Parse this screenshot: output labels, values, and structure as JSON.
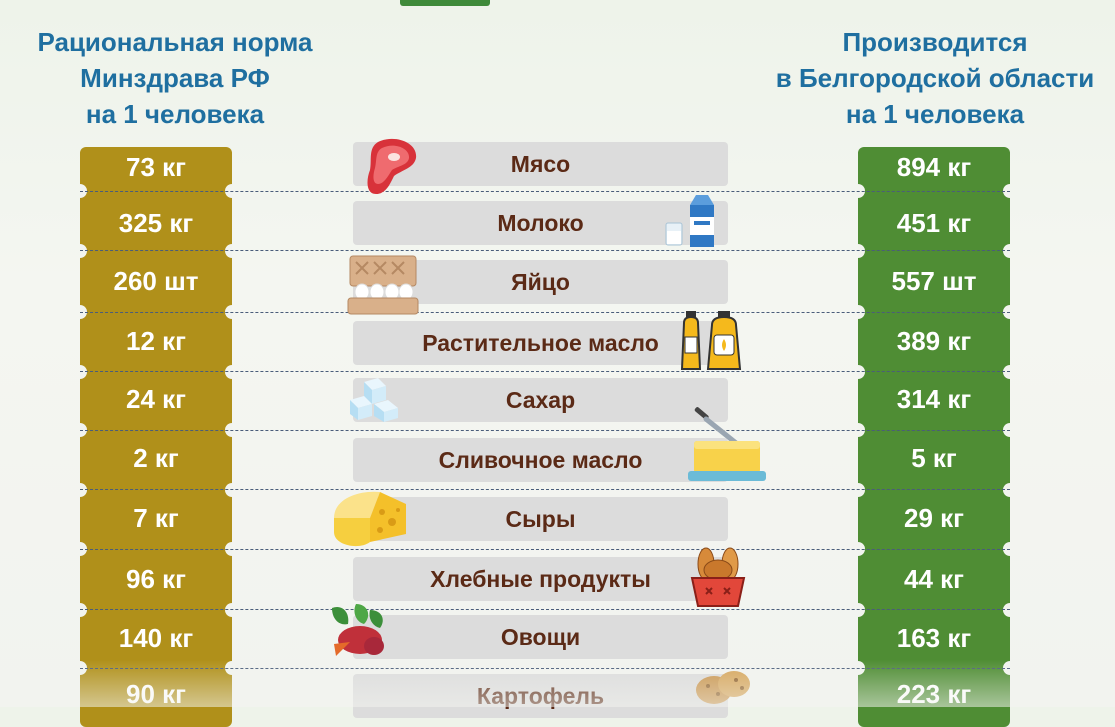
{
  "headers": {
    "left": [
      "Рациональная норма",
      "Минздрава РФ",
      "на 1 человека"
    ],
    "right": [
      "Производится",
      "в Белгородской области",
      "на 1 человека"
    ]
  },
  "rows": [
    {
      "name": "Мясо",
      "norm": "73 кг",
      "produced": "894 кг",
      "icon": "meat-steak-icon"
    },
    {
      "name": "Молоко",
      "norm": "325 кг",
      "produced": "451 кг",
      "icon": "milk-carton-icon"
    },
    {
      "name": "Яйцо",
      "norm": "260 шт",
      "produced": "557 шт",
      "icon": "egg-carton-icon"
    },
    {
      "name": "Растительное масло",
      "norm": "12 кг",
      "produced": "389 кг",
      "icon": "oil-bottles-icon"
    },
    {
      "name": "Сахар",
      "norm": "24 кг",
      "produced": "314 кг",
      "icon": "sugar-cubes-icon"
    },
    {
      "name": "Сливочное масло",
      "norm": "2 кг",
      "produced": "5 кг",
      "icon": "butter-dish-icon"
    },
    {
      "name": "Сыры",
      "norm": "7 кг",
      "produced": "29 кг",
      "icon": "cheese-icon"
    },
    {
      "name": "Хлебные продукты",
      "norm": "96 кг",
      "produced": "44 кг",
      "icon": "bread-basket-icon"
    },
    {
      "name": "Овощи",
      "norm": "140 кг",
      "produced": "163 кг",
      "icon": "vegetables-icon"
    },
    {
      "name": "Картофель",
      "norm": "90 кг",
      "produced": "223 кг",
      "icon": "potatoes-icon"
    }
  ],
  "colors": {
    "header_text": "#1f6fa0",
    "norm_column": "#b0901a",
    "produced_column": "#4f8d34",
    "label_background": "#dcdcdc",
    "label_text": "#5b2a16"
  }
}
